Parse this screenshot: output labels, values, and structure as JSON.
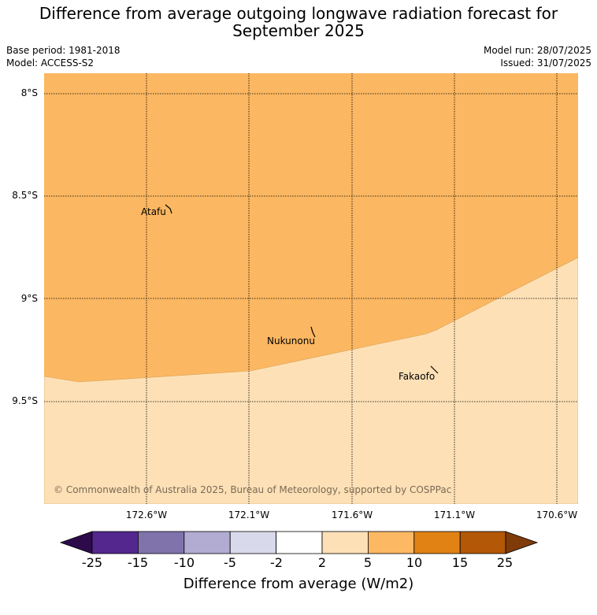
{
  "header": {
    "title_line1": "Difference from average outgoing longwave radiation forecast for",
    "title_line2": "September 2025",
    "base_period": "Base period: 1981-2018",
    "model": "Model: ACCESS-S2",
    "model_run": "Model run: 28/07/2025",
    "issued": "Issued: 31/07/2025"
  },
  "map": {
    "lat_labels": [
      "8°S",
      "8.5°S",
      "9°S",
      "9.5°S"
    ],
    "lon_labels": [
      "172.6°W",
      "172.1°W",
      "171.6°W",
      "171.1°W",
      "170.6°W"
    ],
    "places": [
      "Atafu",
      "Nukunonu",
      "Fakaofo"
    ],
    "fill_colors": {
      "upper_region": "#fbb761",
      "lower_region": "#fde0b6"
    },
    "copyright": "© Commonwealth of Australia 2025, Bureau of Meteorology, supported by COSPPac"
  },
  "colorbar": {
    "title": "Difference from average (W/m2)",
    "tick_labels": [
      "-25",
      "-15",
      "-10",
      "-5",
      "-2",
      "2",
      "5",
      "10",
      "15",
      "25"
    ],
    "colors": [
      "#2d0a4a",
      "#54278f",
      "#8073ac",
      "#b2abd2",
      "#d8daeb",
      "#ffffff",
      "#fee0b6",
      "#fdb863",
      "#e08214",
      "#b35806",
      "#7f3b08"
    ]
  }
}
